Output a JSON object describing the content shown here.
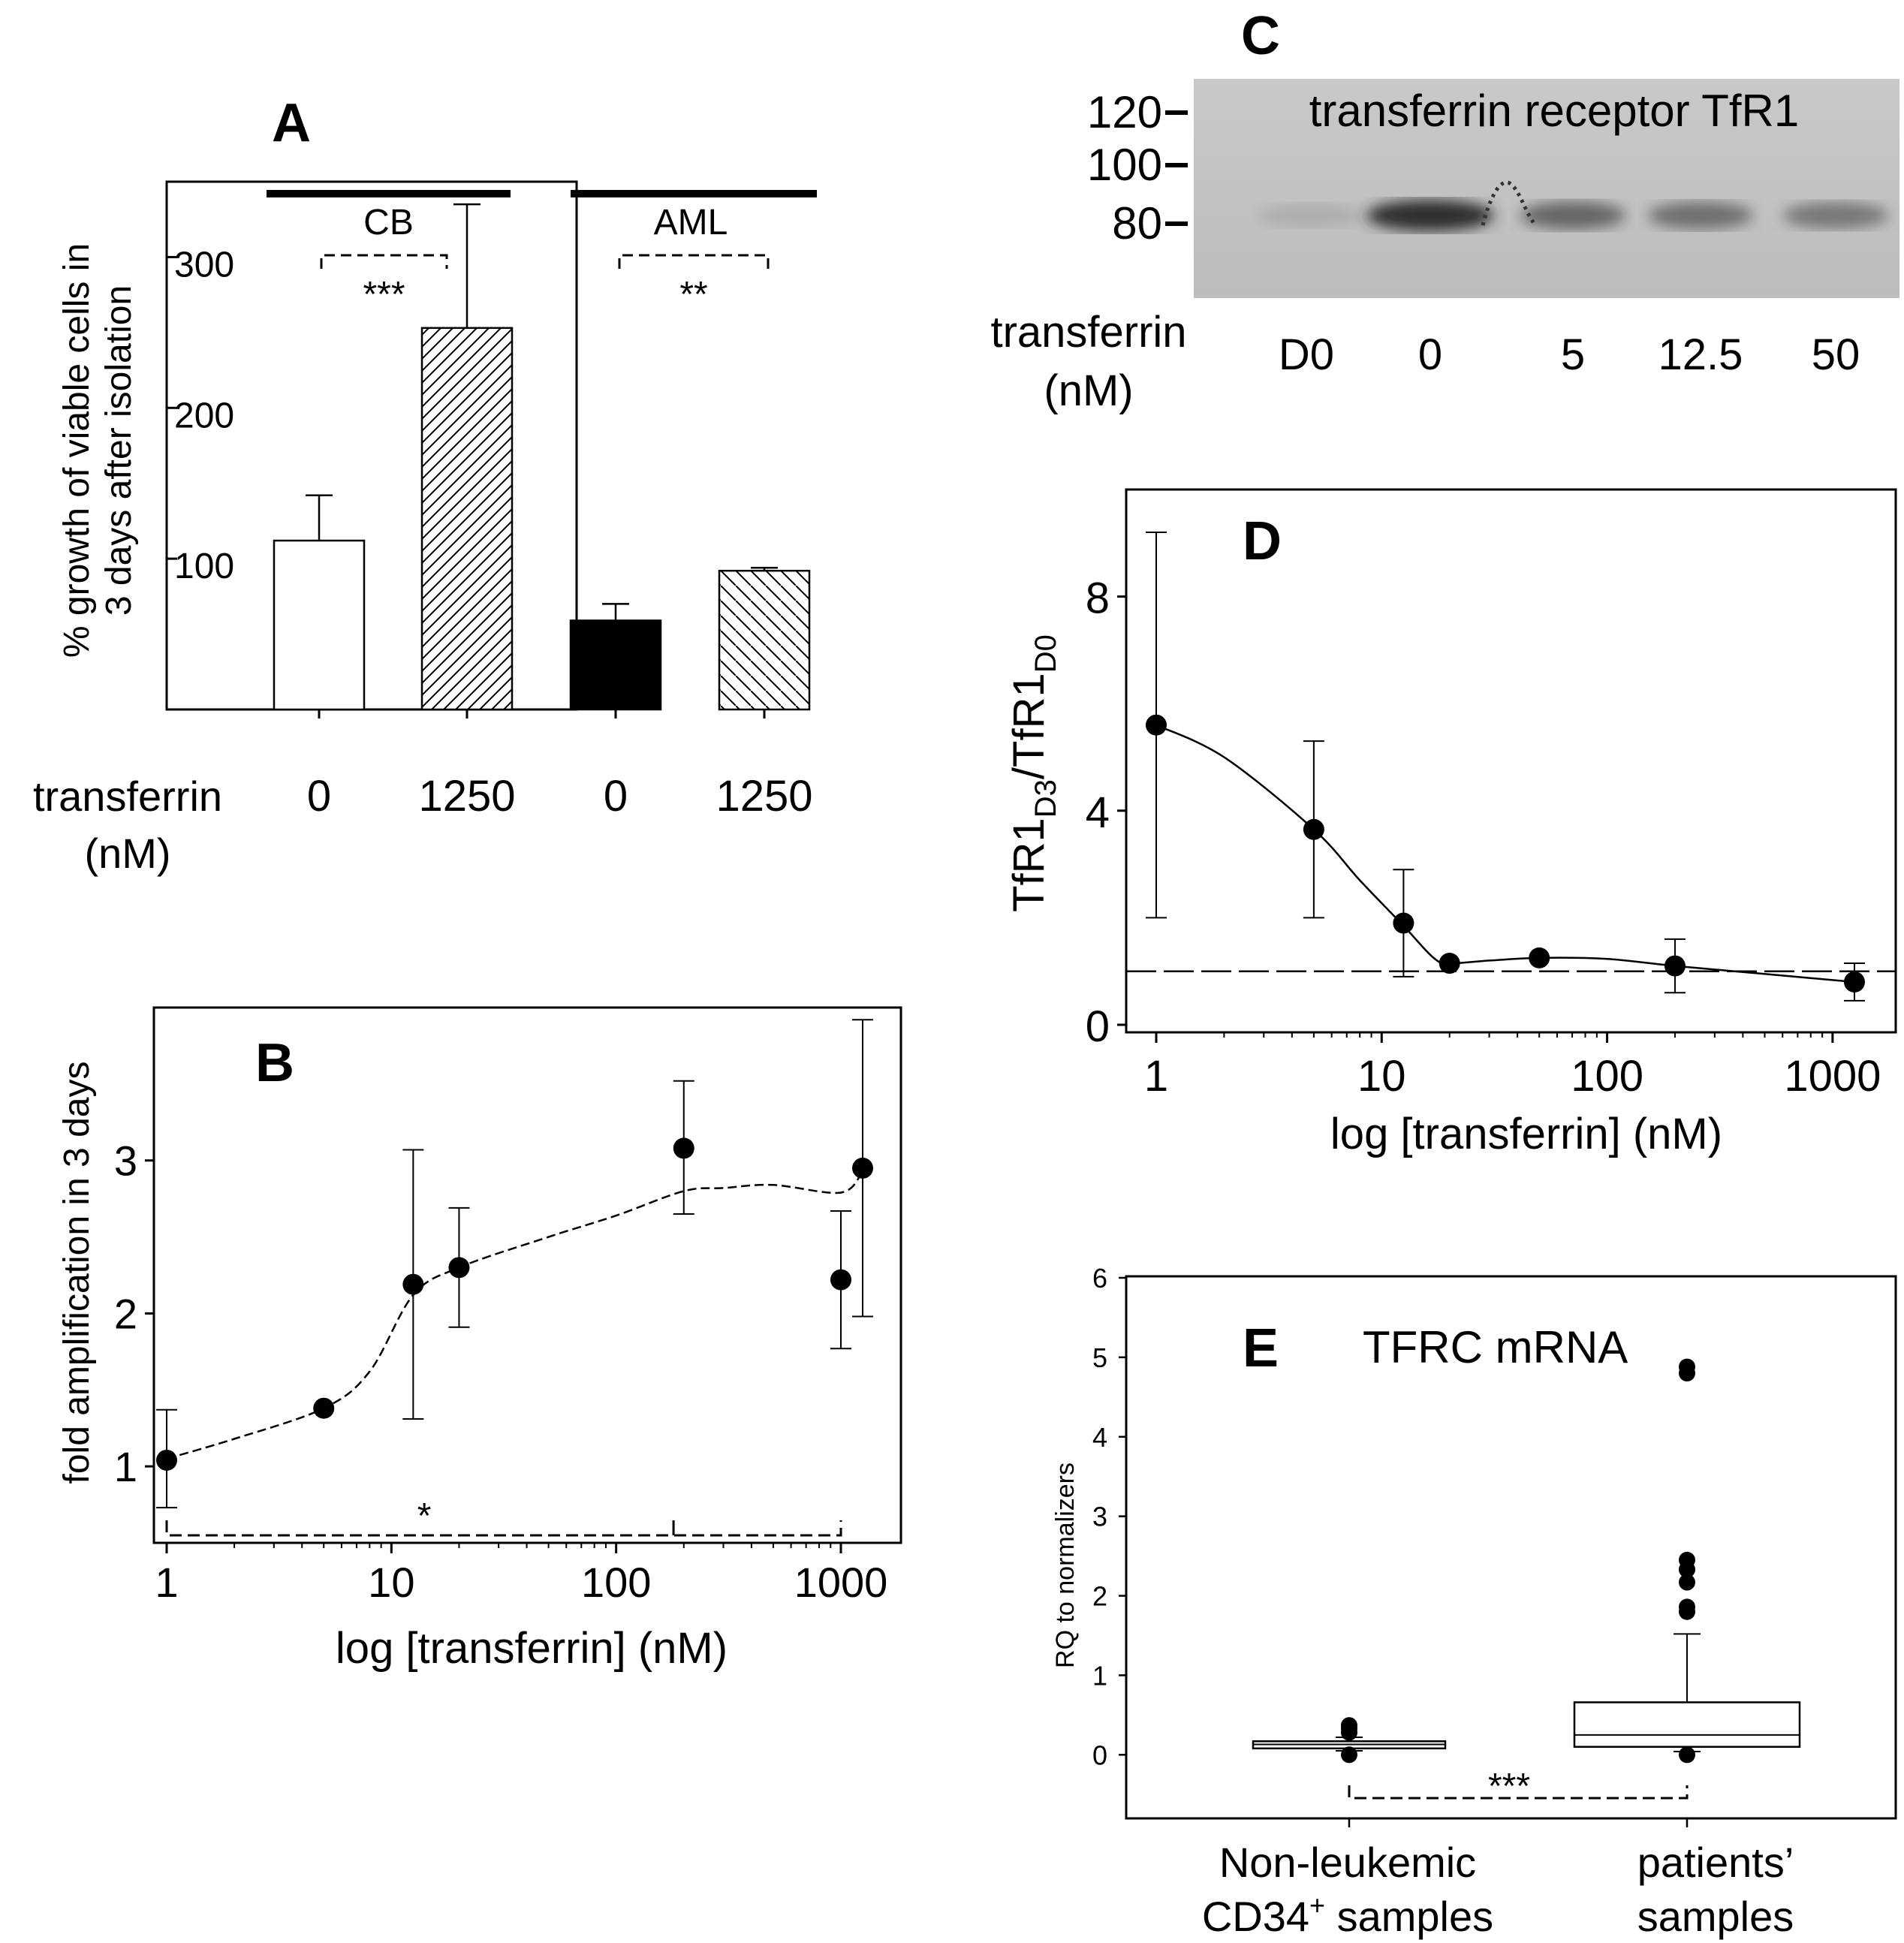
{
  "chart_data": [
    {
      "panel": "A",
      "type": "bar",
      "ylabel_lines": [
        "% growth of viable cells in",
        "3 days after isolation"
      ],
      "y_ticks": [
        100,
        200,
        300
      ],
      "ylim": [
        0,
        350
      ],
      "xlabel_lines": [
        "transferrin",
        "(nM)"
      ],
      "groups": [
        {
          "name": "CB",
          "significance": "***"
        },
        {
          "name": "AML",
          "significance": "**"
        }
      ],
      "bars": [
        {
          "group": "CB",
          "transferrin": "0",
          "value": 112,
          "error": 30,
          "fill": "white"
        },
        {
          "group": "CB",
          "transferrin": "1250",
          "value": 253,
          "error": 82,
          "fill": "hatch-forward"
        },
        {
          "group": "AML",
          "transferrin": "0",
          "value": 59,
          "error": 11,
          "fill": "black"
        },
        {
          "group": "AML",
          "transferrin": "1250",
          "value": 92,
          "error": 2,
          "fill": "hatch-back"
        }
      ]
    },
    {
      "panel": "B",
      "type": "scatter",
      "ylabel": "fold amplification in 3 days",
      "xlabel": "log [transferrin] (nM)",
      "x_scale": "log",
      "xlim": [
        1,
        1800
      ],
      "ylim": [
        0.5,
        4.0
      ],
      "x_ticks": [
        "1",
        "10",
        "100",
        "1000"
      ],
      "y_ticks": [
        "1",
        "2",
        "3"
      ],
      "points": [
        {
          "x": 1,
          "y": 1.04,
          "err_low": 0.31,
          "err_high": 0.33
        },
        {
          "x": 5,
          "y": 1.38,
          "err_low": 0,
          "err_high": 0
        },
        {
          "x": 12.5,
          "y": 2.19,
          "err_low": 0.88,
          "err_high": 0.88
        },
        {
          "x": 20,
          "y": 2.3,
          "err_low": 0.39,
          "err_high": 0.39
        },
        {
          "x": 200,
          "y": 3.08,
          "err_low": 0.43,
          "err_high": 0.44
        },
        {
          "x": 1000,
          "y": 2.22,
          "err_low": 0.45,
          "err_high": 0.45
        },
        {
          "x": 1250,
          "y": 2.95,
          "err_low": 0.97,
          "err_high": 0.97
        }
      ],
      "fit_curve": [
        [
          1,
          1.05
        ],
        [
          2,
          1.18
        ],
        [
          5,
          1.38
        ],
        [
          8,
          1.62
        ],
        [
          12.5,
          2.12
        ],
        [
          20,
          2.3
        ],
        [
          50,
          2.5
        ],
        [
          100,
          2.64
        ],
        [
          200,
          2.8
        ],
        [
          300,
          2.82
        ],
        [
          500,
          2.84
        ],
        [
          1000,
          2.79
        ],
        [
          1250,
          2.93
        ]
      ],
      "significance": "*"
    },
    {
      "panel": "C",
      "type": "western-blot",
      "title": "transferrin receptor TfR1",
      "mw_markers": [
        "120",
        "100",
        "80"
      ],
      "xlabel_lines": [
        "transferrin",
        "(nM)"
      ],
      "lanes": [
        "D0",
        "0",
        "5",
        "12.5",
        "50"
      ],
      "band_intensity": [
        0.15,
        0.85,
        0.55,
        0.5,
        0.45
      ]
    },
    {
      "panel": "D",
      "type": "line",
      "ylabel": "TfR1D3/TfR1D0",
      "xlabel": "log [transferrin] (nM)",
      "x_scale": "log",
      "xlim": [
        0.85,
        2000
      ],
      "ylim": [
        0,
        10
      ],
      "x_ticks": [
        "1",
        "10",
        "100",
        "1000"
      ],
      "y_ticks": [
        "0",
        "4",
        "8"
      ],
      "reference_line": 1,
      "points": [
        {
          "x": 1,
          "y": 5.6,
          "err_low": 3.6,
          "err_high": 3.6
        },
        {
          "x": 5,
          "y": 3.65,
          "err_low": 1.65,
          "err_high": 1.65
        },
        {
          "x": 12.5,
          "y": 1.9,
          "err_low": 1.0,
          "err_high": 1.0
        },
        {
          "x": 20,
          "y": 1.15,
          "err_low": 0,
          "err_high": 0
        },
        {
          "x": 50,
          "y": 1.25,
          "err_low": 0,
          "err_high": 0
        },
        {
          "x": 200,
          "y": 1.1,
          "err_low": 0.5,
          "err_high": 0.5
        },
        {
          "x": 1250,
          "y": 0.8,
          "err_low": 0.35,
          "err_high": 0.35
        }
      ],
      "fit_curve": [
        [
          1,
          5.6
        ],
        [
          2,
          5.0
        ],
        [
          5,
          3.65
        ],
        [
          8,
          2.7
        ],
        [
          12.5,
          1.85
        ],
        [
          17,
          1.25
        ],
        [
          20,
          1.15
        ],
        [
          30,
          1.2
        ],
        [
          50,
          1.25
        ],
        [
          100,
          1.23
        ],
        [
          200,
          1.1
        ],
        [
          500,
          0.95
        ],
        [
          1250,
          0.8
        ]
      ]
    },
    {
      "panel": "E",
      "type": "box",
      "title": "TFRC mRNA",
      "ylabel": "RQ to normalizers",
      "ylim": [
        -0.8,
        6
      ],
      "y_ticks": [
        "0",
        "1",
        "2",
        "3",
        "4",
        "5",
        "6"
      ],
      "groups": [
        {
          "label_line1": "Non-leukemic",
          "label_line2": "CD34",
          "label_sup": "+",
          "label_line2_end": " samples",
          "q1": 0.08,
          "median": 0.13,
          "q3": 0.17,
          "whisker_low": 0.05,
          "whisker_high": 0.22,
          "outliers": [
            0.0,
            0.28,
            0.33,
            0.37
          ]
        },
        {
          "label_line1": "patients’",
          "label_line2": "samples",
          "label_sup": "",
          "label_line2_end": "",
          "q1": 0.1,
          "median": 0.25,
          "q3": 0.66,
          "whisker_low": 0.04,
          "whisker_high": 1.52,
          "outliers": [
            0.0,
            1.8,
            1.86,
            2.17,
            2.33,
            2.45,
            4.8,
            4.88
          ]
        }
      ],
      "significance": "***"
    }
  ]
}
